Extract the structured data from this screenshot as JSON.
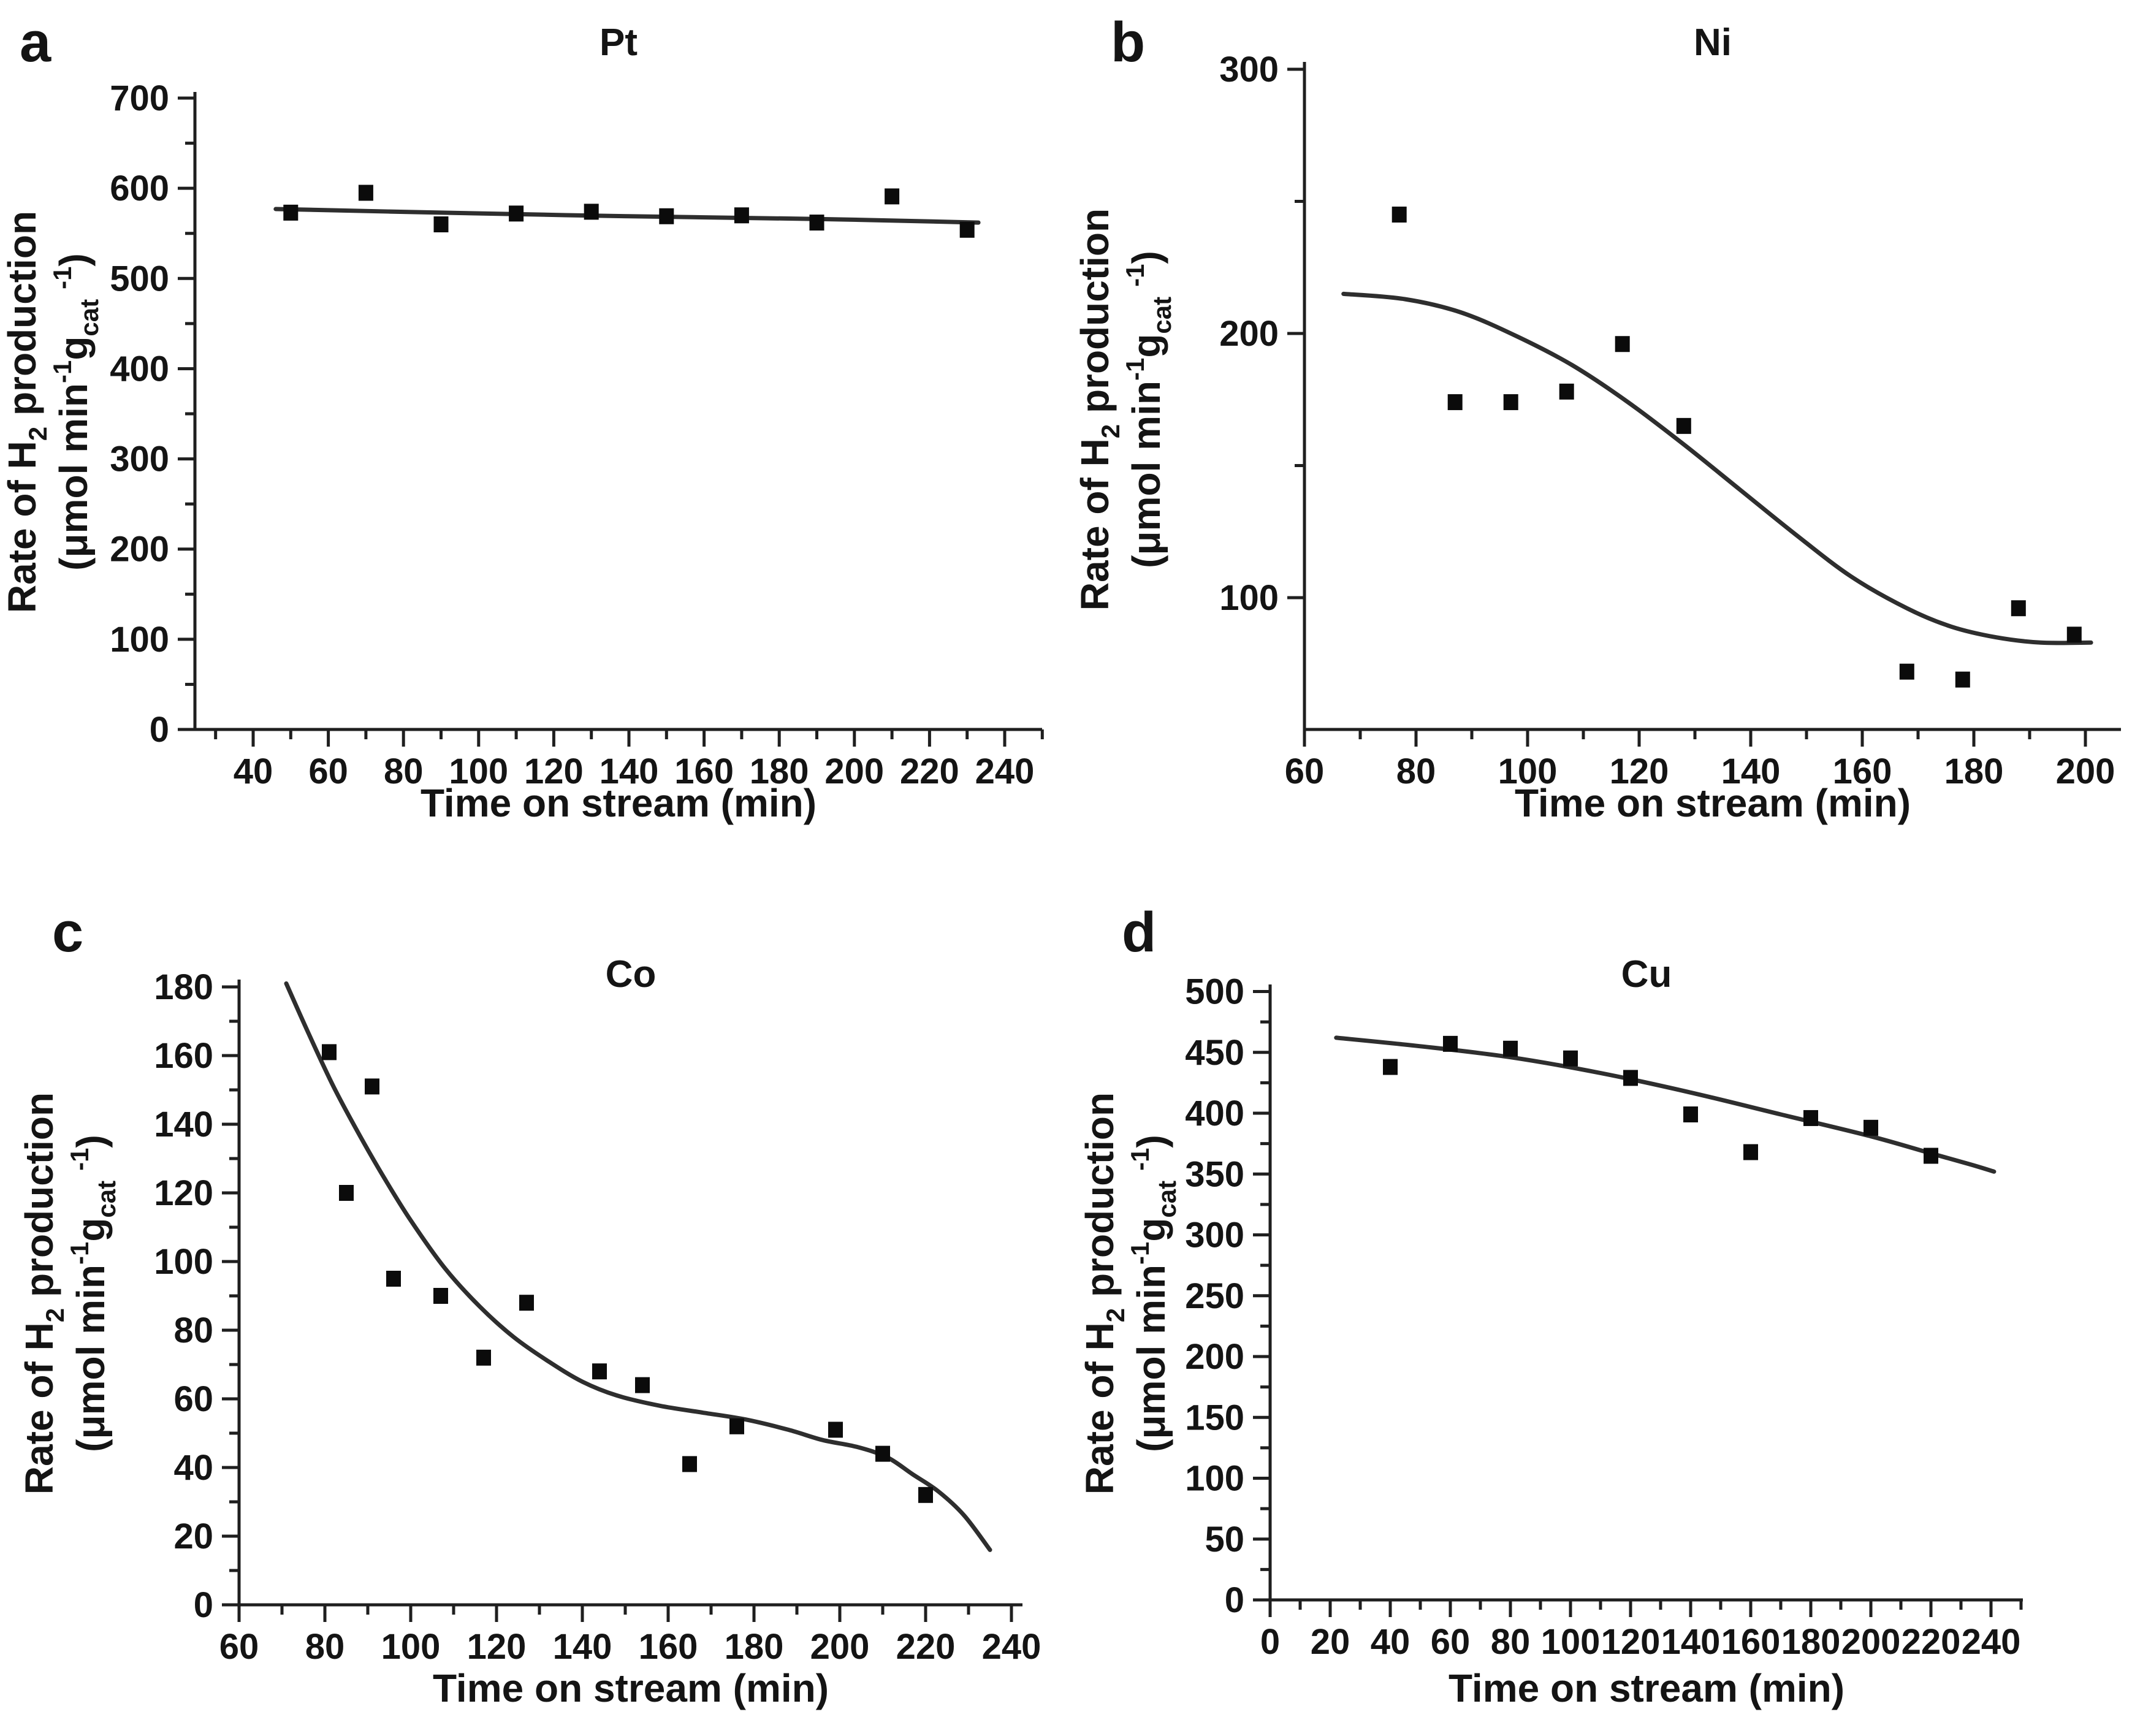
{
  "figure": {
    "background": "#ffffff",
    "text_color": "#141414",
    "axis_color": "#1f1f1f",
    "curve_color": "#2e2e2e",
    "marker_color": "#0b0b0b",
    "xlabel": "Time on stream (min)",
    "ylabel_text": "Rate of H2 production (μmol min-1 gcat-1)",
    "ylabel_line1_parts": [
      {
        "text": "Rate of H",
        "style": "base"
      },
      {
        "text": "2",
        "style": "sub"
      },
      {
        "text": " production",
        "style": "base"
      }
    ],
    "ylabel_line2_parts": [
      {
        "text": "(μmol min",
        "style": "base"
      },
      {
        "text": "-1",
        "style": "sup"
      },
      {
        "text": "g",
        "style": "base"
      },
      {
        "text": "cat",
        "style": "sub"
      },
      {
        "text": "-1",
        "style": "sup"
      },
      {
        "text": ")",
        "style": "base"
      }
    ]
  },
  "chart_data": [
    {
      "panel_letter": "a",
      "title": "Pt",
      "type": "scatter",
      "xlabel": "Time on stream (min)",
      "ylabel": "Rate of H2 production (μmol min-1 gcat-1)",
      "xlim": [
        24,
        250
      ],
      "ylim": [
        0,
        700
      ],
      "grid": false,
      "legend": null,
      "xticks_major": [
        40,
        60,
        80,
        100,
        120,
        140,
        160,
        180,
        200,
        220,
        240
      ],
      "xticks_minor": [
        30,
        50,
        70,
        90,
        110,
        130,
        150,
        170,
        190,
        210,
        230,
        250
      ],
      "yticks_major": [
        0,
        100,
        200,
        300,
        400,
        500,
        600,
        700
      ],
      "yticks_minor": [
        50,
        150,
        250,
        350,
        450,
        550,
        650
      ],
      "points": [
        [
          50,
          573
        ],
        [
          70,
          595
        ],
        [
          90,
          560
        ],
        [
          110,
          572
        ],
        [
          130,
          574
        ],
        [
          150,
          569
        ],
        [
          170,
          570
        ],
        [
          190,
          562
        ],
        [
          210,
          591
        ],
        [
          230,
          554
        ]
      ],
      "fit_curve": [
        [
          46,
          577
        ],
        [
          90,
          573
        ],
        [
          140,
          569
        ],
        [
          190,
          566
        ],
        [
          233,
          562
        ]
      ]
    },
    {
      "panel_letter": "b",
      "title": "Ni",
      "type": "scatter",
      "xlabel": "Time on stream (min)",
      "ylabel": "Rate of H2 production (μmol min-1 gcat-1)",
      "xlim": [
        60,
        206
      ],
      "ylim": [
        50,
        300
      ],
      "grid": false,
      "legend": null,
      "xticks_major": [
        60,
        80,
        100,
        120,
        140,
        160,
        180,
        200
      ],
      "xticks_minor": [
        70,
        90,
        110,
        130,
        150,
        170,
        190
      ],
      "yticks_major": [
        100,
        200,
        300
      ],
      "yticks_minor": [
        150,
        250
      ],
      "points": [
        [
          77,
          245
        ],
        [
          87,
          174
        ],
        [
          97,
          174
        ],
        [
          107,
          178
        ],
        [
          117,
          196
        ],
        [
          128,
          165
        ],
        [
          168,
          72
        ],
        [
          178,
          69
        ],
        [
          188,
          96
        ],
        [
          198,
          86
        ]
      ],
      "fit_curve": [
        [
          67,
          215
        ],
        [
          78,
          213
        ],
        [
          88,
          208
        ],
        [
          98,
          199
        ],
        [
          108,
          188
        ],
        [
          118,
          174
        ],
        [
          128,
          158
        ],
        [
          138,
          141
        ],
        [
          148,
          124
        ],
        [
          158,
          108
        ],
        [
          168,
          96
        ],
        [
          176,
          89
        ],
        [
          184,
          85
        ],
        [
          192,
          83
        ],
        [
          201,
          83
        ]
      ]
    },
    {
      "panel_letter": "c",
      "title": "Co",
      "type": "scatter",
      "xlabel": "Time on stream (min)",
      "ylabel": "Rate of H2 production (μmol min-1 gcat-1)",
      "xlim": [
        54,
        246
      ],
      "ylim": [
        0,
        180
      ],
      "grid": false,
      "legend": null,
      "xticks_major": [
        60,
        80,
        100,
        120,
        140,
        160,
        180,
        200,
        220,
        240
      ],
      "xticks_minor": [
        70,
        90,
        110,
        130,
        150,
        170,
        190,
        210,
        230
      ],
      "yticks_major": [
        0,
        20,
        40,
        60,
        80,
        100,
        120,
        140,
        160,
        180
      ],
      "yticks_minor": [
        10,
        30,
        50,
        70,
        90,
        110,
        130,
        150,
        170
      ],
      "points": [
        [
          81,
          161
        ],
        [
          85,
          120
        ],
        [
          91,
          151
        ],
        [
          96,
          95
        ],
        [
          107,
          90
        ],
        [
          117,
          72
        ],
        [
          127,
          88
        ],
        [
          144,
          68
        ],
        [
          154,
          64
        ],
        [
          165,
          41
        ],
        [
          176,
          52
        ],
        [
          199,
          51
        ],
        [
          210,
          44
        ],
        [
          220,
          32
        ]
      ],
      "fit_curve": [
        [
          71,
          181
        ],
        [
          76,
          167
        ],
        [
          82,
          151
        ],
        [
          88,
          137
        ],
        [
          94,
          124
        ],
        [
          100,
          112
        ],
        [
          108,
          98
        ],
        [
          116,
          87
        ],
        [
          124,
          78
        ],
        [
          132,
          71
        ],
        [
          140,
          65
        ],
        [
          148,
          61
        ],
        [
          158,
          58
        ],
        [
          168,
          56
        ],
        [
          178,
          54
        ],
        [
          188,
          51
        ],
        [
          196,
          48
        ],
        [
          204,
          46
        ],
        [
          211,
          43
        ],
        [
          217,
          38
        ],
        [
          223,
          33
        ],
        [
          229,
          26
        ],
        [
          235,
          16
        ]
      ]
    },
    {
      "panel_letter": "d",
      "title": "Cu",
      "type": "scatter",
      "xlabel": "Time on stream (min)",
      "ylabel": "Rate of H2 production (μmol min-1 gcat-1)",
      "xlim": [
        0,
        250
      ],
      "ylim": [
        0,
        500
      ],
      "grid": false,
      "legend": null,
      "xticks_major": [
        0,
        20,
        40,
        60,
        80,
        100,
        120,
        140,
        160,
        180,
        200,
        220,
        240
      ],
      "xticks_minor": [
        10,
        30,
        50,
        70,
        90,
        110,
        130,
        150,
        170,
        190,
        210,
        230,
        250
      ],
      "yticks_major": [
        0,
        50,
        100,
        150,
        200,
        250,
        300,
        350,
        400,
        450,
        500
      ],
      "yticks_minor": [
        25,
        75,
        125,
        175,
        225,
        275,
        325,
        375,
        425,
        475
      ],
      "points": [
        [
          40,
          438
        ],
        [
          60,
          457
        ],
        [
          80,
          453
        ],
        [
          100,
          445
        ],
        [
          120,
          429
        ],
        [
          140,
          399
        ],
        [
          160,
          368
        ],
        [
          180,
          396
        ],
        [
          200,
          388
        ],
        [
          220,
          365
        ]
      ],
      "fit_curve": [
        [
          22,
          462
        ],
        [
          50,
          455
        ],
        [
          80,
          446
        ],
        [
          110,
          433
        ],
        [
          140,
          417
        ],
        [
          170,
          399
        ],
        [
          200,
          381
        ],
        [
          220,
          367
        ],
        [
          233,
          358
        ],
        [
          241,
          352
        ]
      ]
    }
  ]
}
